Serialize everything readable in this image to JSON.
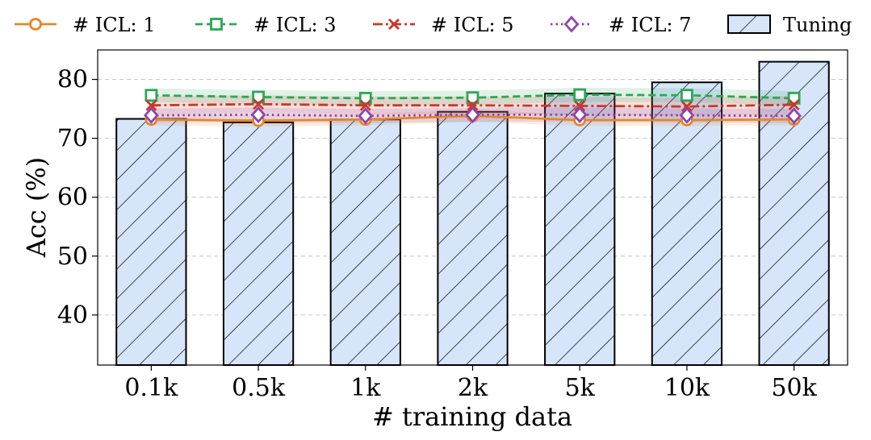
{
  "chart_data": {
    "type": "bar+line",
    "xlabel": "# training data",
    "ylabel": "Acc (%)",
    "ylim": [
      31.5,
      85
    ],
    "yticks": [
      40,
      50,
      60,
      70,
      80
    ],
    "grid": "horizontal dashed",
    "categories": [
      "0.1k",
      "0.5k",
      "1k",
      "2k",
      "5k",
      "10k",
      "50k"
    ],
    "bars": {
      "name": "Tuning",
      "values": [
        73.3,
        72.7,
        73.2,
        74.5,
        77.6,
        79.5,
        83.0
      ],
      "color": "#d6e5f9",
      "hatch": "diagonal"
    },
    "series": [
      {
        "name": "# ICL: 1",
        "values": [
          73.2,
          73.0,
          73.2,
          73.8,
          73.1,
          73.1,
          73.2
        ],
        "band": 1.0,
        "color": "#e6862b",
        "marker": "circle",
        "dash": "solid"
      },
      {
        "name": "# ICL: 3",
        "values": [
          77.3,
          77.0,
          76.8,
          76.9,
          77.4,
          77.3,
          76.8
        ],
        "band": 1.2,
        "color": "#2ca657",
        "marker": "square",
        "dash": "dashed"
      },
      {
        "name": "# ICL: 5",
        "values": [
          75.6,
          75.8,
          75.6,
          75.6,
          75.5,
          75.4,
          75.7
        ],
        "band": 1.5,
        "color": "#c8392b",
        "marker": "x",
        "dash": "dashdot"
      },
      {
        "name": "# ICL: 7",
        "values": [
          73.9,
          74.0,
          73.8,
          74.0,
          74.0,
          73.9,
          73.8
        ],
        "band": 1.2,
        "color": "#8e44ad",
        "marker": "diamond",
        "dash": "dotted"
      }
    ]
  }
}
